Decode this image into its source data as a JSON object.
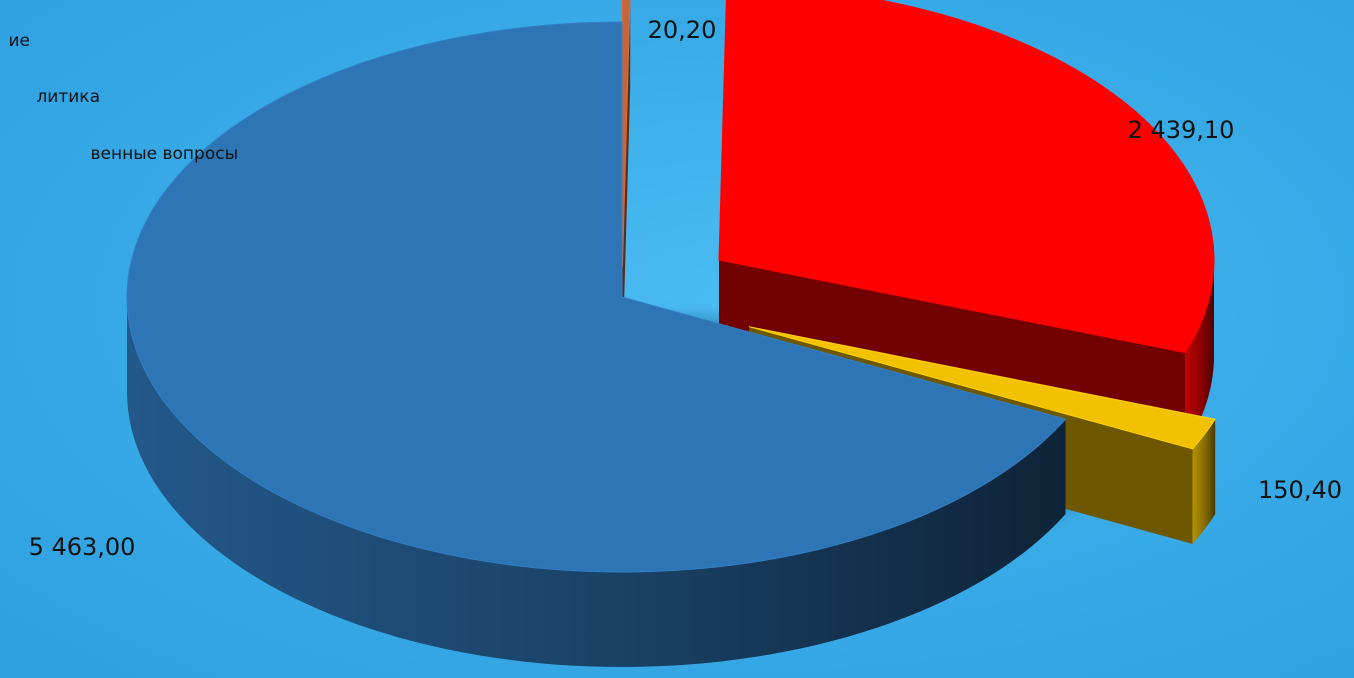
{
  "chart_data": {
    "type": "pie",
    "three_d": true,
    "legend": {
      "placement": "top-left",
      "partially_visible": true
    },
    "slices": [
      {
        "legend_label": "ие",
        "value": 20.2,
        "value_label": "20,20",
        "color": "#c8643a",
        "exploded": true
      },
      {
        "legend_label": "литика",
        "value": 2439.1,
        "value_label": "2 439,10",
        "color": "#ff0000",
        "exploded": true
      },
      {
        "legend_label": "венные вопросы",
        "value": 150.4,
        "value_label": "150,40",
        "color": "#f2c200",
        "exploded": true
      },
      {
        "legend_label": "",
        "value": 5463.0,
        "value_label": "5 463,00",
        "color": "#2e75b6",
        "exploded": false
      }
    ]
  }
}
